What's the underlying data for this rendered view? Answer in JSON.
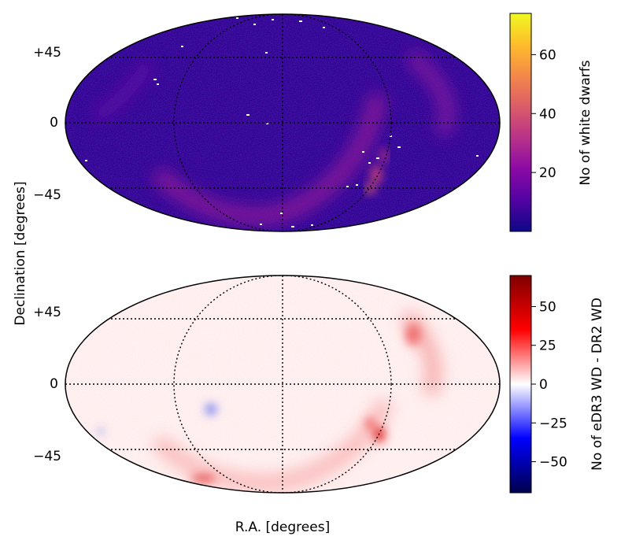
{
  "figure": {
    "xlabel": "R.A. [degrees]",
    "ylabel": "Declination [degrees]"
  },
  "chart_data": [
    {
      "type": "heatmap",
      "projection": "aitoff",
      "colormap": "plasma",
      "yticks": [
        "+45",
        "0",
        "−45"
      ],
      "dec_gridlines": [
        45,
        0,
        -45
      ],
      "ra_gridlines": [
        -90,
        0,
        90
      ],
      "colorbar": {
        "label": "No of white dwarfs",
        "ticks": [
          20,
          40,
          60
        ],
        "tick_labels": [
          "20",
          "40",
          "60"
        ],
        "range": [
          0,
          74
        ]
      },
      "features": [
        {
          "desc": "background density",
          "value": 8
        },
        {
          "desc": "galactic-plane band south-east",
          "value": 22
        },
        {
          "desc": "galactic-plane band south-east peak",
          "value": 45
        },
        {
          "desc": "galactic-plane band north-west",
          "value": 16
        }
      ]
    },
    {
      "type": "heatmap",
      "projection": "aitoff",
      "colormap": "seismic",
      "yticks": [
        "+45",
        "0",
        "−45"
      ],
      "dec_gridlines": [
        45,
        0,
        -45
      ],
      "ra_gridlines": [
        -90,
        0,
        90
      ],
      "colorbar": {
        "label": "No of eDR3 WD - DR2 WD",
        "ticks": [
          50,
          25,
          0,
          -25,
          -50
        ],
        "tick_labels": [
          "50",
          "25",
          "0",
          "−25",
          "−50"
        ],
        "range": [
          -70,
          70
        ]
      },
      "features": [
        {
          "desc": "background difference",
          "value": 4
        },
        {
          "desc": "galactic-plane band difference",
          "value": 20
        },
        {
          "desc": "galactic-plane peak difference",
          "value": 45
        },
        {
          "desc": "negative patch",
          "value": -15
        }
      ]
    }
  ],
  "colors": {
    "plasma_stops": [
      "#0d0887",
      "#5302a3",
      "#8b0aa5",
      "#b83289",
      "#db5c68",
      "#f48849",
      "#febd2a",
      "#f0f921"
    ],
    "seismic_stops": [
      "#00004c",
      "#0000ff",
      "#ffffff",
      "#ff0000",
      "#7f0000"
    ],
    "grid": "#000000"
  }
}
